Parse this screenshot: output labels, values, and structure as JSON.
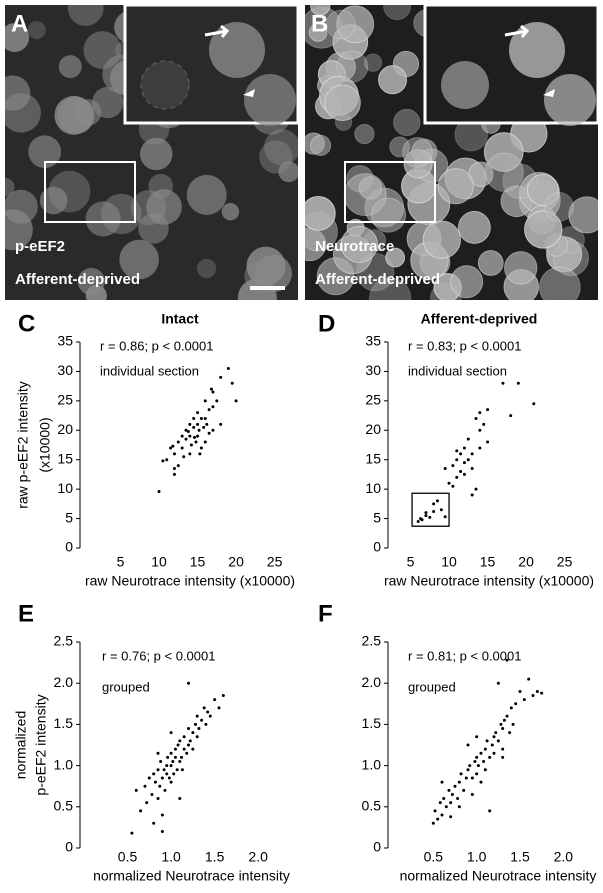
{
  "panels": [
    {
      "label": "A",
      "stain": "p-eEF2",
      "condition": "Afferent-deprived"
    },
    {
      "label": "B",
      "stain": "Neurotrace",
      "condition": "Afferent-deprived"
    }
  ],
  "chart_data": [
    {
      "type": "scatter",
      "panel_label": "C",
      "title": "Intact",
      "annotations": [
        "r = 0.86; p < 0.0001",
        "individual section"
      ],
      "xlabel": "raw Neurotrace intensity (x10000)",
      "ylabel": [
        "raw p-eEF2 intensity",
        "(x10000)"
      ],
      "color": "#000000",
      "xlim": [
        0,
        27
      ],
      "ylim": [
        0,
        35
      ],
      "xticks": [
        5,
        10,
        15,
        20,
        25
      ],
      "yticks": [
        0,
        5,
        10,
        15,
        20,
        25,
        30,
        35
      ],
      "x": [
        10,
        10.5,
        11,
        11.5,
        12,
        12,
        12.5,
        12.5,
        13,
        13,
        13.2,
        13.5,
        13.5,
        14,
        14,
        14,
        14.2,
        14.5,
        14.5,
        14.8,
        15,
        15,
        15,
        15.2,
        15.5,
        15.5,
        15.8,
        16,
        16,
        16,
        16.2,
        16.5,
        16.5,
        17,
        17,
        17,
        17.5,
        18,
        18,
        19,
        19.5,
        20,
        12,
        13.8,
        15.3,
        16.8,
        11.8,
        14.6
      ],
      "values": [
        9.6,
        14.8,
        15,
        17,
        12.5,
        16,
        18,
        14,
        17,
        19,
        15.5,
        18.5,
        20,
        16,
        19,
        21,
        17.5,
        20.5,
        22,
        18,
        19,
        21,
        23,
        20,
        17,
        22,
        20.5,
        18,
        22,
        25,
        21,
        19.5,
        23.5,
        20,
        24,
        26.5,
        25,
        21,
        29,
        30.5,
        28,
        25,
        13.5,
        19.8,
        16,
        27,
        17.3,
        18.8
      ]
    },
    {
      "type": "scatter",
      "panel_label": "D",
      "title": "Afferent-deprived",
      "annotations": [
        "r = 0.83; p < 0.0001",
        "individual section"
      ],
      "xlabel": "raw Neurotrace intensity (x10000)",
      "ylabel": [
        "raw p-eEF2 intensity",
        "(x10000)"
      ],
      "color": "#000000",
      "xlim": [
        0,
        27
      ],
      "ylim": [
        0,
        35
      ],
      "xticks": [
        5,
        10,
        15,
        20,
        25
      ],
      "yticks": [
        0,
        5,
        10,
        15,
        20,
        25,
        30,
        35
      ],
      "highlight_box": {
        "xlim": [
          5.2,
          10
        ],
        "ylim": [
          3.7,
          9.3
        ]
      },
      "x": [
        6,
        6.3,
        6.5,
        7,
        7,
        7.5,
        8,
        8,
        8.5,
        9,
        9.5,
        9.5,
        10,
        10.5,
        10.5,
        11,
        11,
        11,
        11.5,
        11.5,
        12,
        12,
        12,
        12.5,
        12.5,
        13,
        13,
        13,
        13.5,
        13.5,
        14,
        14,
        14,
        14.5,
        15,
        15,
        17,
        18,
        19,
        21
      ],
      "values": [
        4.5,
        5,
        4.8,
        5.5,
        6,
        5.2,
        7.5,
        6.2,
        8,
        6.5,
        5.3,
        13.5,
        11,
        10.5,
        14,
        12,
        15,
        16.5,
        13,
        16,
        14.5,
        17,
        12.5,
        15,
        18.5,
        9,
        13.5,
        16,
        10,
        22,
        17,
        20,
        23,
        21,
        23.5,
        18,
        28,
        22.5,
        28,
        24.5
      ]
    },
    {
      "type": "scatter",
      "panel_label": "E",
      "annotations": [
        "r = 0.76; p < 0.0001",
        "grouped"
      ],
      "xlabel": "normalized Neurotrace intensity",
      "ylabel": [
        "normalized",
        "p-eEF2 intensity"
      ],
      "color": "#000000",
      "xlim": [
        0,
        2.4
      ],
      "ylim": [
        0,
        2.5
      ],
      "xticks": [
        0.5,
        {
          "value": 1,
          "label": "1.0"
        },
        1.5,
        {
          "value": 2,
          "label": "2.0"
        }
      ],
      "yticks": [
        0,
        0.5,
        {
          "value": 1,
          "label": "1.0"
        },
        1.5,
        {
          "value": 2,
          "label": "2.0"
        },
        2.5
      ],
      "x": [
        0.55,
        0.6,
        0.65,
        0.7,
        0.72,
        0.75,
        0.78,
        0.8,
        0.8,
        0.82,
        0.85,
        0.85,
        0.87,
        0.88,
        0.9,
        0.9,
        0.92,
        0.93,
        0.95,
        0.95,
        0.96,
        0.98,
        1.0,
        1.0,
        1.0,
        1.02,
        1.03,
        1.05,
        1.05,
        1.07,
        1.08,
        1.1,
        1.1,
        1.12,
        1.13,
        1.15,
        1.15,
        1.18,
        1.2,
        1.2,
        1.22,
        1.25,
        1.25,
        1.28,
        1.3,
        1.3,
        1.32,
        1.35,
        1.38,
        1.4,
        1.42,
        1.45,
        1.5,
        1.55,
        1.6,
        0.9,
        1.0,
        1.1,
        0.85,
        1.2
      ],
      "values": [
        0.18,
        0.7,
        0.45,
        0.75,
        0.55,
        0.85,
        0.65,
        0.9,
        0.3,
        0.8,
        0.95,
        0.6,
        0.75,
        1.05,
        0.85,
        0.2,
        0.95,
        0.7,
        1.0,
        0.9,
        1.1,
        0.85,
        1.0,
        0.8,
        1.15,
        1.05,
        0.9,
        1.1,
        1.2,
        0.95,
        1.25,
        1.05,
        1.3,
        1.1,
        0.95,
        1.2,
        1.35,
        1.15,
        1.25,
        1.45,
        1.3,
        1.4,
        1.2,
        1.5,
        1.35,
        1.6,
        1.45,
        1.55,
        1.7,
        1.5,
        1.65,
        1.6,
        1.8,
        1.7,
        1.85,
        0.4,
        1.4,
        0.6,
        1.15,
        2.0
      ]
    },
    {
      "type": "scatter",
      "panel_label": "F",
      "annotations": [
        "r = 0.81; p < 0.0001",
        "grouped"
      ],
      "xlabel": "normalized Neurotrace intensity",
      "ylabel": [
        "normalized",
        "p-eEF2 intensity"
      ],
      "color": "#000000",
      "xlim": [
        0,
        2.4
      ],
      "ylim": [
        0,
        2.5
      ],
      "xticks": [
        0.5,
        {
          "value": 1,
          "label": "1.0"
        },
        1.5,
        {
          "value": 2,
          "label": "2.0"
        }
      ],
      "yticks": [
        0,
        0.5,
        {
          "value": 1,
          "label": "1.0"
        },
        1.5,
        {
          "value": 2,
          "label": "2.0"
        },
        2.5
      ],
      "x": [
        0.5,
        0.52,
        0.55,
        0.58,
        0.6,
        0.62,
        0.65,
        0.68,
        0.7,
        0.72,
        0.75,
        0.78,
        0.8,
        0.82,
        0.85,
        0.88,
        0.9,
        0.92,
        0.95,
        0.98,
        1.0,
        1.0,
        1.02,
        1.05,
        1.08,
        1.1,
        1.1,
        1.12,
        1.15,
        1.18,
        1.2,
        1.2,
        1.22,
        1.25,
        1.28,
        1.3,
        1.3,
        1.32,
        1.35,
        1.38,
        1.4,
        1.42,
        1.45,
        1.5,
        1.55,
        1.6,
        1.65,
        1.7,
        1.75,
        0.6,
        0.8,
        1.0,
        1.15,
        1.25,
        1.35,
        0.7,
        0.95,
        1.05,
        1.3,
        0.9
      ],
      "values": [
        0.3,
        0.45,
        0.35,
        0.55,
        0.4,
        0.6,
        0.5,
        0.7,
        0.55,
        0.65,
        0.75,
        0.6,
        0.8,
        0.9,
        0.7,
        0.85,
        0.95,
        1.0,
        0.85,
        1.05,
        1.1,
        0.9,
        1.0,
        1.15,
        1.05,
        1.2,
        0.95,
        1.3,
        1.1,
        1.25,
        1.35,
        1.15,
        1.4,
        1.3,
        1.5,
        1.45,
        1.2,
        1.55,
        1.6,
        1.4,
        1.7,
        1.5,
        1.75,
        1.9,
        1.8,
        2.05,
        1.85,
        1.9,
        1.88,
        0.8,
        0.5,
        1.35,
        0.45,
        2.0,
        2.28,
        0.38,
        0.65,
        0.8,
        1.1,
        1.25
      ]
    }
  ]
}
